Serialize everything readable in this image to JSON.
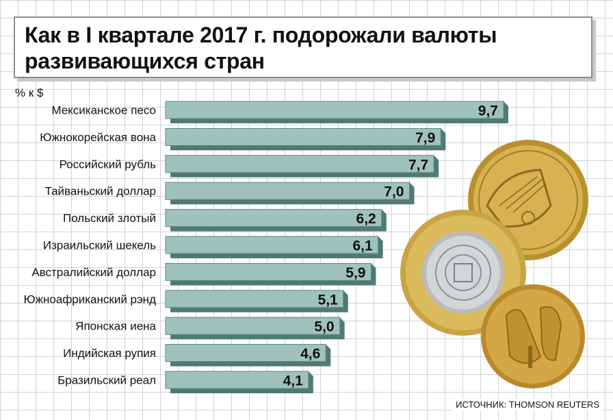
{
  "title": "Как в I квартале 2017 г. подорожали валюты развивающихся стран",
  "unit_label": "% к $",
  "source": "ИСТОЧНИК: THOMSON REUTERS",
  "colors": {
    "bar_face": "#9fc2bd",
    "bar_side": "#4f7a73",
    "bar_outline": "#5b857e",
    "grid": "#cfd2d4"
  },
  "chart_data": {
    "type": "bar",
    "orientation": "horizontal",
    "categories": [
      "Мексиканское песо",
      "Южнокорейская вона",
      "Российский рубль",
      "Тайваньский доллар",
      "Польский злотый",
      "Израильский шекель",
      "Австралийский доллар",
      "Южноафриканский рэнд",
      "Японская иена",
      "Индийская рупия",
      "Бразильский реал"
    ],
    "values": [
      9.7,
      7.9,
      7.7,
      7.0,
      6.2,
      6.1,
      5.9,
      5.1,
      5.0,
      4.6,
      4.1
    ],
    "value_labels": [
      "9,7",
      "7,9",
      "7,7",
      "7,0",
      "6,2",
      "6,1",
      "5,9",
      "5,1",
      "5,0",
      "4,6",
      "4,1"
    ],
    "ylabel": "% к $",
    "xlim": [
      0,
      9.7
    ],
    "grid": true
  },
  "decorations": [
    "israeli-shekel-coin",
    "mexican-peso-coin",
    "australian-dollar-coin"
  ]
}
